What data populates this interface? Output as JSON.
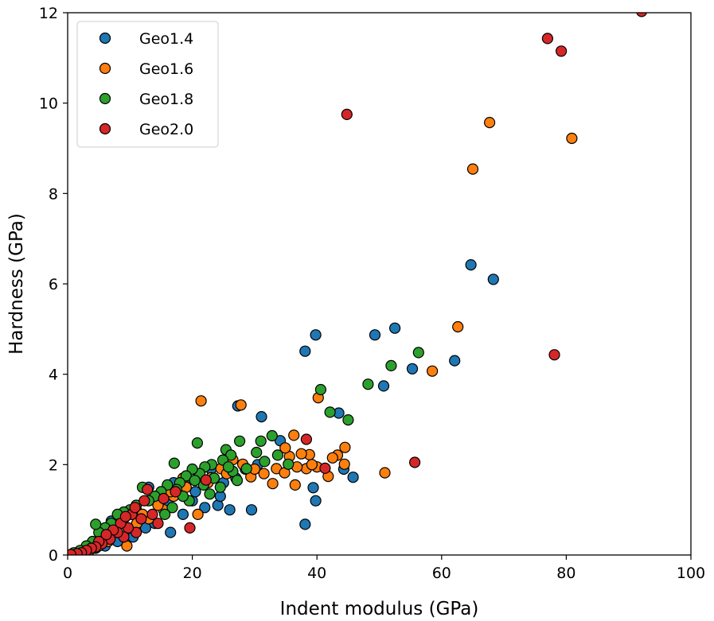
{
  "chart_data": {
    "type": "scatter",
    "title": "",
    "xlabel": "Indent modulus (GPa)",
    "ylabel": "Hardness (GPa)",
    "xlim": [
      0,
      100
    ],
    "ylim": [
      0,
      12
    ],
    "xticks": [
      0,
      20,
      40,
      60,
      80,
      100
    ],
    "yticks": [
      0,
      2,
      4,
      6,
      8,
      10,
      12
    ],
    "grid": false,
    "legend_position": "top-left",
    "marker_edge_color": "#000000",
    "series": [
      {
        "name": "Geo1.4",
        "color": "#1f77b4",
        "points": [
          [
            64.7,
            6.42
          ],
          [
            68.3,
            6.1
          ],
          [
            39.8,
            4.87
          ],
          [
            49.3,
            4.87
          ],
          [
            52.5,
            5.02
          ],
          [
            38.1,
            4.51
          ],
          [
            55.3,
            4.12
          ],
          [
            62.1,
            4.3
          ],
          [
            50.7,
            3.74
          ],
          [
            43.5,
            3.14
          ],
          [
            44.3,
            1.9
          ],
          [
            45.8,
            1.72
          ],
          [
            39.4,
            1.49
          ],
          [
            39.8,
            1.2
          ],
          [
            38.1,
            0.68
          ],
          [
            34.1,
            2.53
          ],
          [
            31.1,
            3.06
          ],
          [
            27.3,
            3.3
          ],
          [
            29.5,
            1.0
          ],
          [
            26.0,
            1.0
          ],
          [
            24.1,
            1.1
          ],
          [
            22.0,
            1.05
          ],
          [
            20.0,
            1.2
          ],
          [
            18.5,
            0.9
          ],
          [
            16.5,
            0.5
          ],
          [
            14.0,
            0.7
          ],
          [
            12.5,
            0.6
          ],
          [
            10.5,
            0.4
          ],
          [
            8.0,
            0.3
          ],
          [
            7.0,
            0.75
          ],
          [
            6.0,
            0.2
          ],
          [
            4.5,
            0.15
          ],
          [
            3.0,
            0.1
          ],
          [
            2.0,
            0.05
          ],
          [
            1.0,
            0.02
          ],
          [
            13.0,
            1.5
          ],
          [
            15.0,
            1.3
          ],
          [
            17.0,
            1.6
          ],
          [
            19.0,
            1.7
          ],
          [
            21.0,
            1.8
          ],
          [
            23.0,
            1.9
          ],
          [
            25.0,
            1.6
          ],
          [
            27.0,
            1.7
          ],
          [
            28.5,
            1.9
          ],
          [
            30.5,
            2.0
          ],
          [
            11.0,
            1.0
          ],
          [
            9.0,
            0.8
          ],
          [
            16.0,
            1.2
          ],
          [
            20.5,
            1.4
          ],
          [
            24.5,
            1.3
          ]
        ]
      },
      {
        "name": "Geo1.6",
        "color": "#ff7f0e",
        "points": [
          [
            67.7,
            9.57
          ],
          [
            80.9,
            9.22
          ],
          [
            65.0,
            8.54
          ],
          [
            62.6,
            5.05
          ],
          [
            58.5,
            4.07
          ],
          [
            50.9,
            1.82
          ],
          [
            21.4,
            3.41
          ],
          [
            27.8,
            3.32
          ],
          [
            40.2,
            3.48
          ],
          [
            44.5,
            2.38
          ],
          [
            43.3,
            2.21
          ],
          [
            44.4,
            2.01
          ],
          [
            41.8,
            1.74
          ],
          [
            40.0,
            1.95
          ],
          [
            38.8,
            2.22
          ],
          [
            37.5,
            2.24
          ],
          [
            36.3,
            2.65
          ],
          [
            35.6,
            2.18
          ],
          [
            34.9,
            2.37
          ],
          [
            33.5,
            1.91
          ],
          [
            34.8,
            1.82
          ],
          [
            32.9,
            1.58
          ],
          [
            36.5,
            1.55
          ],
          [
            38.3,
            1.91
          ],
          [
            29.4,
            1.73
          ],
          [
            28.1,
            2.01
          ],
          [
            26.5,
            2.11
          ],
          [
            24.6,
            1.91
          ],
          [
            23.0,
            1.71
          ],
          [
            20.9,
            0.9
          ],
          [
            19.0,
            1.5
          ],
          [
            17.0,
            1.3
          ],
          [
            15.4,
            1.0
          ],
          [
            13.0,
            0.8
          ],
          [
            11.1,
            0.7
          ],
          [
            9.5,
            0.2
          ],
          [
            8.0,
            0.5
          ],
          [
            6.5,
            0.3
          ],
          [
            5.0,
            0.2
          ],
          [
            3.5,
            0.1
          ],
          [
            2.5,
            0.05
          ],
          [
            12.0,
            0.9
          ],
          [
            14.5,
            1.1
          ],
          [
            16.5,
            1.4
          ],
          [
            18.5,
            1.7
          ],
          [
            22.5,
            1.6
          ],
          [
            25.5,
            1.8
          ],
          [
            30.0,
            1.9
          ],
          [
            31.5,
            1.8
          ],
          [
            36.8,
            1.95
          ],
          [
            39.2,
            2.0
          ],
          [
            42.5,
            2.15
          ]
        ]
      },
      {
        "name": "Geo1.8",
        "color": "#2ca02c",
        "points": [
          [
            56.3,
            4.48
          ],
          [
            51.9,
            4.19
          ],
          [
            48.2,
            3.78
          ],
          [
            40.6,
            3.66
          ],
          [
            42.1,
            3.16
          ],
          [
            45.0,
            2.99
          ],
          [
            32.8,
            2.64
          ],
          [
            31.0,
            2.52
          ],
          [
            27.6,
            2.52
          ],
          [
            20.8,
            2.48
          ],
          [
            17.1,
            2.03
          ],
          [
            35.4,
            2.01
          ],
          [
            33.7,
            2.21
          ],
          [
            30.3,
            2.27
          ],
          [
            31.6,
            2.07
          ],
          [
            28.7,
            1.91
          ],
          [
            25.4,
            2.33
          ],
          [
            26.2,
            2.21
          ],
          [
            24.9,
            2.1
          ],
          [
            23.1,
            2.0
          ],
          [
            22.0,
            1.95
          ],
          [
            21.2,
            1.8
          ],
          [
            20.0,
            1.9
          ],
          [
            19.0,
            1.75
          ],
          [
            18.0,
            1.6
          ],
          [
            17.5,
            1.45
          ],
          [
            16.0,
            1.55
          ],
          [
            15.0,
            1.4
          ],
          [
            14.0,
            1.3
          ],
          [
            13.0,
            1.2
          ],
          [
            12.0,
            1.5
          ],
          [
            11.0,
            1.1
          ],
          [
            10.0,
            1.0
          ],
          [
            9.0,
            0.95
          ],
          [
            8.0,
            0.9
          ],
          [
            7.0,
            0.7
          ],
          [
            6.0,
            0.6
          ],
          [
            5.0,
            0.5
          ],
          [
            4.5,
            0.68
          ],
          [
            4.0,
            0.3
          ],
          [
            3.0,
            0.2
          ],
          [
            2.0,
            0.1
          ],
          [
            1.0,
            0.05
          ],
          [
            23.5,
            1.7
          ],
          [
            24.5,
            1.5
          ],
          [
            26.5,
            1.85
          ],
          [
            27.2,
            1.65
          ],
          [
            22.8,
            1.35
          ],
          [
            19.5,
            1.2
          ],
          [
            18.5,
            1.3
          ],
          [
            16.8,
            1.05
          ],
          [
            21.8,
            1.55
          ],
          [
            20.4,
            1.65
          ],
          [
            15.6,
            0.9
          ],
          [
            25.8,
            1.95
          ]
        ]
      },
      {
        "name": "Geo2.0",
        "color": "#d62728",
        "points": [
          [
            92.1,
            12.03
          ],
          [
            77.0,
            11.43
          ],
          [
            79.2,
            11.15
          ],
          [
            44.8,
            9.75
          ],
          [
            78.1,
            4.43
          ],
          [
            55.7,
            2.05
          ],
          [
            41.3,
            1.92
          ],
          [
            38.3,
            2.56
          ],
          [
            22.2,
            1.66
          ],
          [
            19.6,
            0.6
          ],
          [
            17.3,
            1.4
          ],
          [
            15.4,
            1.25
          ],
          [
            14.5,
            0.7
          ],
          [
            13.6,
            0.9
          ],
          [
            12.3,
            1.2
          ],
          [
            11.8,
            0.8
          ],
          [
            11.0,
            0.5
          ],
          [
            10.3,
            0.9
          ],
          [
            9.7,
            0.6
          ],
          [
            9.0,
            0.4
          ],
          [
            8.5,
            0.7
          ],
          [
            8.0,
            0.5
          ],
          [
            7.3,
            0.55
          ],
          [
            6.8,
            0.35
          ],
          [
            6.2,
            0.45
          ],
          [
            5.5,
            0.25
          ],
          [
            5.0,
            0.3
          ],
          [
            4.5,
            0.18
          ],
          [
            3.8,
            0.15
          ],
          [
            3.0,
            0.1
          ],
          [
            2.2,
            0.05
          ],
          [
            1.5,
            0.03
          ],
          [
            0.5,
            0.01
          ],
          [
            12.8,
            1.45
          ],
          [
            10.8,
            1.05
          ],
          [
            9.3,
            0.85
          ]
        ]
      }
    ]
  }
}
